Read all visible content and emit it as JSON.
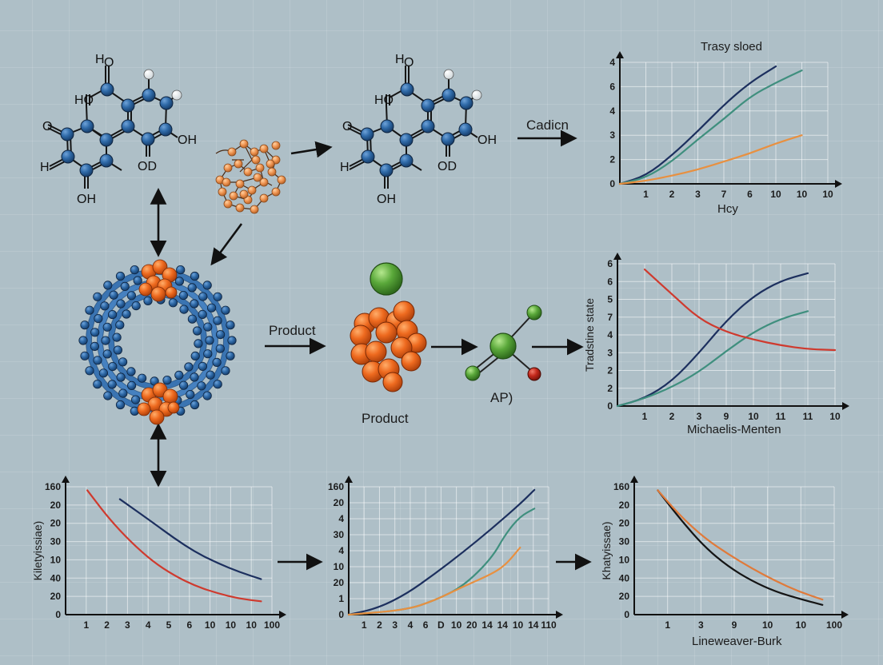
{
  "diagram": {
    "topic": "enzyme kinetics reaction pathway",
    "background_color": "#aebfc7",
    "colors": {
      "atom_blue": "#2f6aa8",
      "cluster_orange": "#ee6a1f",
      "green_atom": "#5aa83a",
      "red_atom": "#c3281b",
      "line_navy": "#1c2f5e",
      "line_teal": "#3f8f7e",
      "line_orange": "#e89040",
      "line_red": "#cf3a2e"
    },
    "molecules": [
      {
        "id": "molecule-left",
        "labels": [
          "HO",
          "HO",
          "O",
          "H",
          "OH",
          "OD",
          "OH"
        ]
      },
      {
        "id": "molecule-center",
        "labels": [
          "HO",
          "HO",
          "O",
          "H",
          "OH",
          "OD",
          "OH"
        ]
      }
    ],
    "arrows": {
      "cadicn_label": "Cadicn",
      "product_label": "Product",
      "product_caption": "Product",
      "ap_label": "AP)"
    }
  },
  "chart_data": [
    {
      "id": "chart-top-right",
      "type": "line",
      "title": "Trasy sloed",
      "xlabel": "Hcy",
      "ylabel": "",
      "x_ticks": [
        "1",
        "2",
        "3",
        "7",
        "6",
        "10",
        "10",
        "10"
      ],
      "y_ticks": [
        "0",
        "2",
        "3",
        "4",
        "6",
        "4"
      ],
      "grid": true,
      "series": [
        {
          "name": "navy",
          "color": "#1c2f5e",
          "points": [
            [
              0,
              0
            ],
            [
              1,
              0.4
            ],
            [
              2,
              1.4
            ],
            [
              3,
              2.6
            ],
            [
              4,
              3.9
            ],
            [
              5,
              5.0
            ],
            [
              6,
              5.8
            ]
          ]
        },
        {
          "name": "teal",
          "color": "#3f8f7e",
          "points": [
            [
              0,
              0
            ],
            [
              1,
              0.3
            ],
            [
              2,
              1.1
            ],
            [
              3,
              2.2
            ],
            [
              4,
              3.2
            ],
            [
              5,
              4.3
            ],
            [
              6,
              5.0
            ],
            [
              7,
              5.6
            ]
          ]
        },
        {
          "name": "orange",
          "color": "#e89040",
          "points": [
            [
              0,
              0
            ],
            [
              1,
              0.15
            ],
            [
              2,
              0.4
            ],
            [
              3,
              0.7
            ],
            [
              4,
              1.1
            ],
            [
              5,
              1.5
            ],
            [
              6,
              2.0
            ],
            [
              7,
              2.4
            ]
          ]
        }
      ]
    },
    {
      "id": "chart-middle-right",
      "type": "line",
      "title": "",
      "xlabel": "Michaelis-Menten",
      "ylabel": "Tradstine state",
      "x_ticks": [
        "1",
        "2",
        "3",
        "9",
        "10",
        "11",
        "11",
        "10"
      ],
      "y_ticks": [
        "0",
        "2",
        "2",
        "3",
        "4",
        "7",
        "5",
        "6",
        "6"
      ],
      "grid": true,
      "series": [
        {
          "name": "navy",
          "color": "#1c2f5e",
          "points": [
            [
              0,
              0
            ],
            [
              1,
              0.4
            ],
            [
              2,
              1.3
            ],
            [
              3,
              2.8
            ],
            [
              4,
              4.5
            ],
            [
              5,
              5.8
            ],
            [
              6,
              6.6
            ],
            [
              7,
              7.0
            ]
          ]
        },
        {
          "name": "teal",
          "color": "#3f8f7e",
          "points": [
            [
              0,
              0
            ],
            [
              1,
              0.4
            ],
            [
              2,
              1.0
            ],
            [
              3,
              1.8
            ],
            [
              4,
              2.9
            ],
            [
              5,
              3.9
            ],
            [
              6,
              4.6
            ],
            [
              7,
              5.0
            ]
          ]
        },
        {
          "name": "red",
          "color": "#cf3a2e",
          "points": [
            [
              1,
              7.2
            ],
            [
              2,
              5.9
            ],
            [
              3,
              4.6
            ],
            [
              4,
              3.9
            ],
            [
              5,
              3.5
            ],
            [
              6,
              3.2
            ],
            [
              7,
              3.0
            ],
            [
              8,
              2.95
            ]
          ]
        }
      ]
    },
    {
      "id": "chart-bottom-left",
      "type": "line",
      "title": "",
      "xlabel": "",
      "ylabel": "Kiletyissiae)",
      "x_ticks": [
        "1",
        "2",
        "3",
        "4",
        "5",
        "6",
        "10",
        "10",
        "10",
        "100"
      ],
      "y_ticks": [
        "0",
        "20",
        "40",
        "10",
        "30",
        "20",
        "20",
        "160"
      ],
      "grid": true,
      "series": [
        {
          "name": "red",
          "color": "#cf3a2e",
          "points": [
            [
              1,
              7.0
            ],
            [
              2,
              5.4
            ],
            [
              3,
              4.1
            ],
            [
              4,
              3.0
            ],
            [
              5,
              2.2
            ],
            [
              6,
              1.6
            ],
            [
              7,
              1.2
            ],
            [
              8,
              0.9
            ],
            [
              9,
              0.75
            ]
          ]
        },
        {
          "name": "navy",
          "color": "#1c2f5e",
          "points": [
            [
              2.5,
              6.5
            ],
            [
              4,
              5.2
            ],
            [
              5,
              4.3
            ],
            [
              6,
              3.5
            ],
            [
              7,
              2.9
            ],
            [
              8,
              2.4
            ],
            [
              9,
              2.0
            ]
          ]
        }
      ]
    },
    {
      "id": "chart-bottom-center",
      "type": "line",
      "title": "",
      "xlabel": "",
      "ylabel": "",
      "x_ticks": [
        "1",
        "2",
        "3",
        "4",
        "6",
        "D",
        "10",
        "20",
        "14",
        "14",
        "10",
        "14",
        "110"
      ],
      "y_ticks": [
        "0",
        "1",
        "20",
        "10",
        "4",
        "30",
        "4",
        "20",
        "160"
      ],
      "grid": true,
      "series": [
        {
          "name": "navy",
          "color": "#1c2f5e",
          "points": [
            [
              0,
              0
            ],
            [
              2,
              0.4
            ],
            [
              4,
              1.3
            ],
            [
              6,
              2.6
            ],
            [
              8,
              4.0
            ],
            [
              10,
              5.5
            ],
            [
              12,
              7.1
            ],
            [
              13,
              8.0
            ]
          ]
        },
        {
          "name": "teal",
          "color": "#3f8f7e",
          "points": [
            [
              0,
              0
            ],
            [
              4,
              0.3
            ],
            [
              6,
              0.9
            ],
            [
              8,
              1.8
            ],
            [
              10,
              3.6
            ],
            [
              11,
              5.2
            ],
            [
              12,
              6.3
            ],
            [
              13,
              6.8
            ]
          ]
        },
        {
          "name": "orange",
          "color": "#e89040",
          "points": [
            [
              0,
              0
            ],
            [
              4,
              0.3
            ],
            [
              6,
              0.9
            ],
            [
              8,
              1.8
            ],
            [
              10,
              2.6
            ],
            [
              11,
              3.2
            ],
            [
              12,
              4.3
            ]
          ]
        }
      ]
    },
    {
      "id": "chart-bottom-right",
      "type": "line",
      "title": "",
      "xlabel": "Lineweaver-Burk",
      "ylabel": "Khatyissae)",
      "x_ticks": [
        "1",
        "3",
        "9",
        "10",
        "10",
        "100"
      ],
      "y_ticks": [
        "0",
        "20",
        "40",
        "10",
        "30",
        "20",
        "20",
        "160"
      ],
      "grid": true,
      "series": [
        {
          "name": "black",
          "color": "#141414",
          "points": [
            [
              1,
              7.0
            ],
            [
              2,
              5.3
            ],
            [
              3,
              3.8
            ],
            [
              4,
              2.7
            ],
            [
              5,
              1.9
            ],
            [
              6,
              1.3
            ],
            [
              7,
              0.9
            ],
            [
              8,
              0.55
            ]
          ]
        },
        {
          "name": "orange",
          "color": "#e07a3a",
          "points": [
            [
              1,
              7.0
            ],
            [
              2,
              5.5
            ],
            [
              3,
              4.3
            ],
            [
              4,
              3.4
            ],
            [
              5,
              2.6
            ],
            [
              6,
              1.9
            ],
            [
              7,
              1.3
            ],
            [
              8,
              0.85
            ]
          ]
        }
      ]
    }
  ]
}
